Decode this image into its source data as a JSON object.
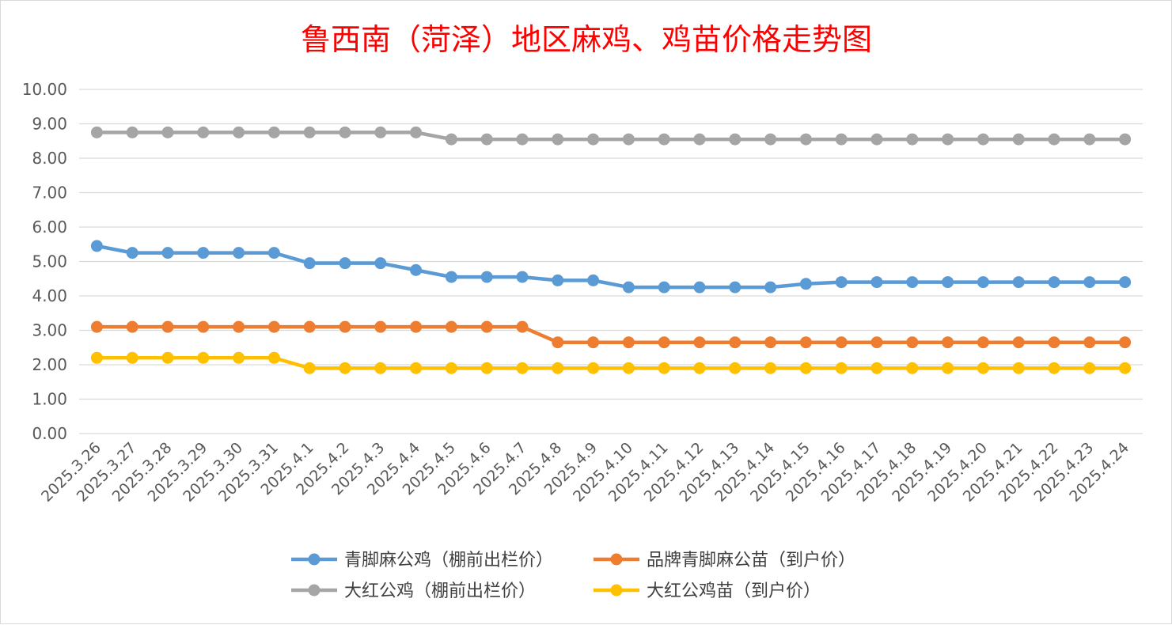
{
  "chart_data": {
    "type": "line",
    "title": "鲁西南（菏泽）地区麻鸡、鸡苗价格走势图",
    "xlabel": "",
    "ylabel": "",
    "ylim": [
      0,
      10
    ],
    "yticks": [
      "0.00",
      "1.00",
      "2.00",
      "3.00",
      "4.00",
      "5.00",
      "6.00",
      "7.00",
      "8.00",
      "9.00",
      "10.00"
    ],
    "grid": true,
    "legend_position": "bottom",
    "categories": [
      "2025.3.26",
      "2025.3.27",
      "2025.3.28",
      "2025.3.29",
      "2025.3.30",
      "2025.3.31",
      "2025.4.1",
      "2025.4.2",
      "2025.4.3",
      "2025.4.4",
      "2025.4.5",
      "2025.4.6",
      "2025.4.7",
      "2025.4.8",
      "2025.4.9",
      "2025.4.10",
      "2025.4.11",
      "2025.4.12",
      "2025.4.13",
      "2025.4.14",
      "2025.4.15",
      "2025.4.16",
      "2025.4.17",
      "2025.4.18",
      "2025.4.19",
      "2025.4.20",
      "2025.4.21",
      "2025.4.22",
      "2025.4.23",
      "2025.4.24"
    ],
    "series": [
      {
        "name": "青脚麻公鸡（棚前出栏价）",
        "color": "#5b9bd5",
        "values": [
          5.45,
          5.25,
          5.25,
          5.25,
          5.25,
          5.25,
          4.95,
          4.95,
          4.95,
          4.75,
          4.55,
          4.55,
          4.55,
          4.45,
          4.45,
          4.25,
          4.25,
          4.25,
          4.25,
          4.25,
          4.35,
          4.4,
          4.4,
          4.4,
          4.4,
          4.4,
          4.4,
          4.4,
          4.4,
          4.4
        ]
      },
      {
        "name": "品牌青脚麻公苗（到户价）",
        "color": "#ed7d31",
        "values": [
          3.1,
          3.1,
          3.1,
          3.1,
          3.1,
          3.1,
          3.1,
          3.1,
          3.1,
          3.1,
          3.1,
          3.1,
          3.1,
          2.65,
          2.65,
          2.65,
          2.65,
          2.65,
          2.65,
          2.65,
          2.65,
          2.65,
          2.65,
          2.65,
          2.65,
          2.65,
          2.65,
          2.65,
          2.65,
          2.65
        ]
      },
      {
        "name": "大红公鸡（棚前出栏价）",
        "color": "#a5a5a5",
        "values": [
          8.75,
          8.75,
          8.75,
          8.75,
          8.75,
          8.75,
          8.75,
          8.75,
          8.75,
          8.75,
          8.55,
          8.55,
          8.55,
          8.55,
          8.55,
          8.55,
          8.55,
          8.55,
          8.55,
          8.55,
          8.55,
          8.55,
          8.55,
          8.55,
          8.55,
          8.55,
          8.55,
          8.55,
          8.55,
          8.55
        ]
      },
      {
        "name": "大红公鸡苗（到户价）",
        "color": "#ffc000",
        "values": [
          2.2,
          2.2,
          2.2,
          2.2,
          2.2,
          2.2,
          1.9,
          1.9,
          1.9,
          1.9,
          1.9,
          1.9,
          1.9,
          1.9,
          1.9,
          1.9,
          1.9,
          1.9,
          1.9,
          1.9,
          1.9,
          1.9,
          1.9,
          1.9,
          1.9,
          1.9,
          1.9,
          1.9,
          1.9,
          1.9
        ]
      }
    ]
  }
}
